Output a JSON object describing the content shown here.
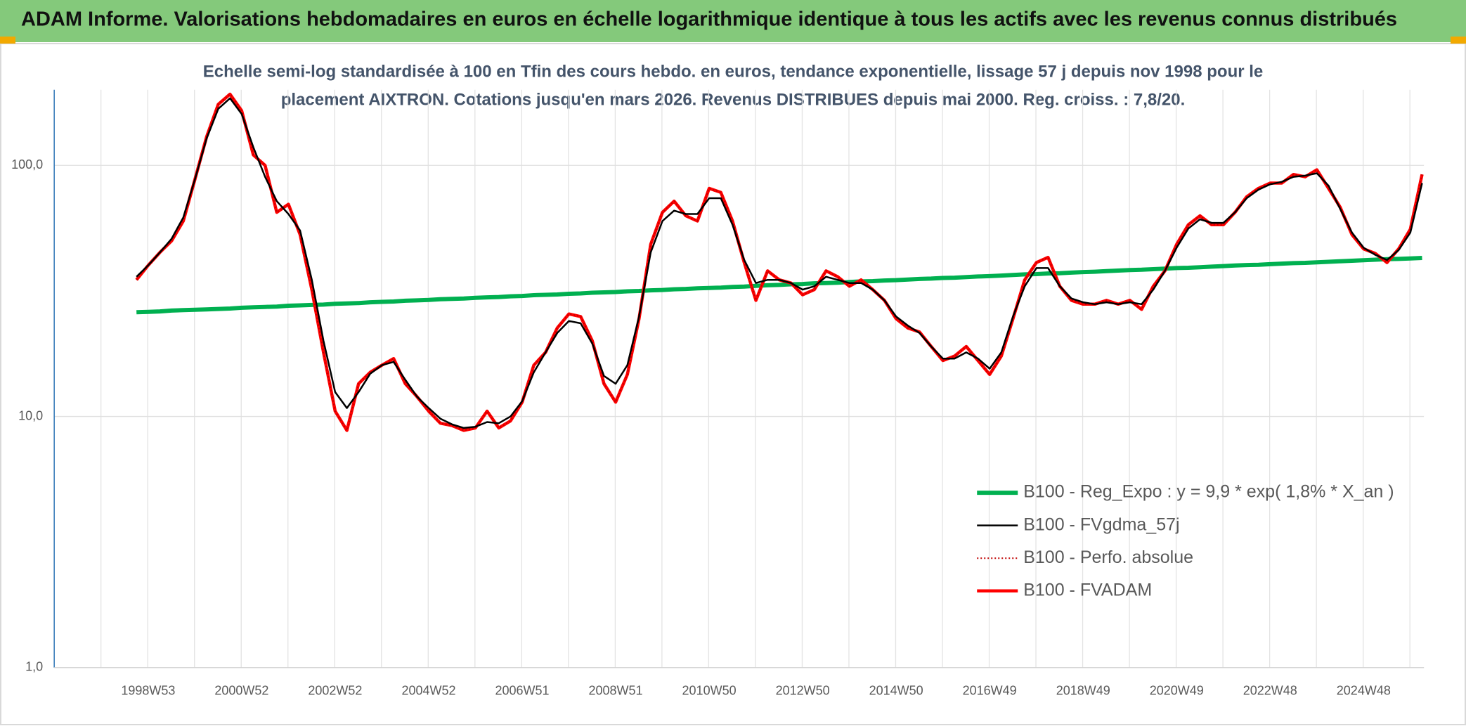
{
  "chart_data": {
    "type": "line",
    "title": "ADAM Informe. Valorisations hebdomadaires en euros en échelle logarithmique identique à tous les actifs avec les revenus connus distribués",
    "subtitle": [
      "Echelle semi-log standardisée à 100 en Tfin des cours hebdo. en euros, tendance exponentielle, lissage 57 j depuis nov 1998 pour le",
      "placement AIXTRON. Cotations jusqu'en mars 2026. Revenus DISTRIBUES depuis mai 2000. Reg. croiss. : 7,8/20."
    ],
    "log_scale": true,
    "grid": true,
    "legend": "right",
    "ylim": [
      1,
      200
    ],
    "yticks": [
      {
        "value": 1,
        "label": "1,0"
      },
      {
        "value": 10,
        "label": "10,0"
      },
      {
        "value": 100,
        "label": "100,0"
      }
    ],
    "categories": [
      null,
      "1998W53",
      null,
      null,
      null,
      null,
      null,
      null,
      null,
      "2000W52",
      null,
      null,
      null,
      null,
      null,
      null,
      null,
      "2002W52",
      null,
      null,
      null,
      null,
      null,
      null,
      null,
      "2004W52",
      null,
      null,
      null,
      null,
      null,
      null,
      null,
      "2006W51",
      null,
      null,
      null,
      null,
      null,
      null,
      null,
      "2008W51",
      null,
      null,
      null,
      null,
      null,
      null,
      null,
      "2010W50",
      null,
      null,
      null,
      null,
      null,
      null,
      null,
      "2012W50",
      null,
      null,
      null,
      null,
      null,
      null,
      null,
      "2014W50",
      null,
      null,
      null,
      null,
      null,
      null,
      null,
      "2016W49",
      null,
      null,
      null,
      null,
      null,
      null,
      null,
      "2018W49",
      null,
      null,
      null,
      null,
      null,
      null,
      null,
      "2020W49",
      null,
      null,
      null,
      null,
      null,
      null,
      null,
      "2022W48",
      null,
      null,
      null,
      null,
      null,
      null,
      null,
      "2024W48",
      null,
      null,
      null,
      null,
      null
    ],
    "series": [
      {
        "name": "B100 - Reg_Expo : y = 9,9 * exp( 1,8% *  X_an )",
        "color": "#00b050",
        "style": "solid",
        "values": [
          26.0,
          26.1,
          26.2,
          26.4,
          26.5,
          26.6,
          26.7,
          26.8,
          26.9,
          27.1,
          27.2,
          27.3,
          27.4,
          27.6,
          27.7,
          27.8,
          27.9,
          28.1,
          28.2,
          28.3,
          28.5,
          28.6,
          28.7,
          28.9,
          29.0,
          29.1,
          29.3,
          29.4,
          29.5,
          29.7,
          29.8,
          29.9,
          30.1,
          30.2,
          30.4,
          30.5,
          30.6,
          30.8,
          30.9,
          31.1,
          31.2,
          31.3,
          31.5,
          31.6,
          31.8,
          31.9,
          32.1,
          32.2,
          32.4,
          32.5,
          32.6,
          32.8,
          32.9,
          33.1,
          33.3,
          33.4,
          33.6,
          33.7,
          33.9,
          34.0,
          34.1,
          34.3,
          34.5,
          34.6,
          34.8,
          34.9,
          35.1,
          35.3,
          35.4,
          35.6,
          35.7,
          35.9,
          36.1,
          36.2,
          36.4,
          36.6,
          36.8,
          36.9,
          37.1,
          37.2,
          37.4,
          37.6,
          37.7,
          37.9,
          38.1,
          38.3,
          38.4,
          38.6,
          38.8,
          39.0,
          39.1,
          39.3,
          39.5,
          39.7,
          39.9,
          40.1,
          40.2,
          40.4,
          40.6,
          40.8,
          40.9,
          41.1,
          41.3,
          41.5,
          41.7,
          41.9,
          42.1,
          42.3,
          42.4,
          42.6,
          42.8
        ]
      },
      {
        "name": "B100 - FVgdma_57j",
        "color": "#000000",
        "style": "solid",
        "values": [
          36,
          40,
          45,
          51,
          62,
          88,
          128,
          168,
          185,
          160,
          118,
          90,
          72,
          64,
          55,
          35,
          20,
          12.5,
          10.8,
          12.5,
          14.8,
          16,
          16.5,
          14,
          12,
          10.8,
          9.8,
          9.3,
          9.0,
          9.1,
          9.5,
          9.4,
          10,
          11.5,
          15,
          18,
          21.5,
          24,
          23.5,
          19.5,
          14.5,
          13.5,
          16,
          25,
          45,
          60,
          66,
          64,
          64,
          74,
          74,
          58,
          42,
          34,
          35,
          35,
          34,
          32,
          33,
          36,
          35,
          34,
          34,
          32,
          29,
          25,
          23,
          21.5,
          19,
          17,
          17,
          18,
          17,
          15.5,
          18,
          25,
          33,
          39,
          39,
          33,
          29.5,
          28.5,
          28,
          28.5,
          28,
          28.5,
          28,
          32,
          38,
          47,
          56,
          61,
          59,
          59,
          65,
          74,
          80,
          84,
          86,
          90,
          91,
          93,
          83,
          67,
          54,
          47,
          44,
          42,
          46,
          54,
          85
        ]
      },
      {
        "name": "B100 - Perfo. absolue",
        "color": "#c00000",
        "style": "dotted",
        "values": [
          35,
          40,
          45,
          50,
          60,
          88,
          130,
          175,
          192,
          165,
          110,
          100,
          65,
          70,
          53,
          32,
          18,
          10.5,
          8.8,
          13.5,
          15,
          16,
          17,
          13.5,
          12,
          10.5,
          9.4,
          9.2,
          8.8,
          9.0,
          10.5,
          9.0,
          9.6,
          11.4,
          16,
          18,
          22.5,
          25.6,
          25,
          20,
          13.5,
          11.4,
          14.7,
          24.5,
          48.5,
          65,
          72,
          63,
          60,
          81,
          78,
          60,
          41,
          29,
          38,
          35,
          34,
          30.5,
          32,
          38,
          36,
          33,
          35,
          32,
          29,
          24.5,
          22.5,
          21.7,
          19,
          16.7,
          17.4,
          19,
          16.7,
          14.7,
          17.4,
          24.5,
          35,
          41,
          43,
          33,
          29,
          28,
          28,
          29,
          28,
          29,
          26.7,
          33,
          38,
          48.5,
          58,
          63,
          58,
          58,
          65,
          75,
          81,
          85,
          85,
          92,
          90,
          96,
          81,
          68,
          53,
          46.5,
          44.6,
          41,
          46.5,
          55.7,
          92
        ]
      },
      {
        "name": "B100 - FVADAM",
        "color": "#ff0000",
        "style": "solid",
        "values": [
          35,
          40,
          45,
          50,
          60,
          88,
          130,
          175,
          192,
          165,
          110,
          100,
          65,
          70,
          53,
          32,
          18,
          10.5,
          8.8,
          13.5,
          15,
          16,
          17,
          13.5,
          12,
          10.5,
          9.4,
          9.2,
          8.8,
          9.0,
          10.5,
          9.0,
          9.6,
          11.4,
          16,
          18,
          22.5,
          25.6,
          25,
          20,
          13.5,
          11.4,
          14.7,
          24.5,
          48.5,
          65,
          72,
          63,
          60,
          81,
          78,
          60,
          41,
          29,
          38,
          35,
          34,
          30.5,
          32,
          38,
          36,
          33,
          35,
          32,
          29,
          24.5,
          22.5,
          21.7,
          19,
          16.7,
          17.4,
          19,
          16.7,
          14.7,
          17.4,
          24.5,
          35,
          41,
          43,
          33,
          29,
          28,
          28,
          29,
          28,
          29,
          26.7,
          33,
          38,
          48.5,
          58,
          63,
          58,
          58,
          65,
          75,
          81,
          85,
          85,
          92,
          90,
          96,
          81,
          68,
          53,
          46.5,
          44.6,
          41,
          46.5,
          55.7,
          92
        ]
      }
    ]
  }
}
